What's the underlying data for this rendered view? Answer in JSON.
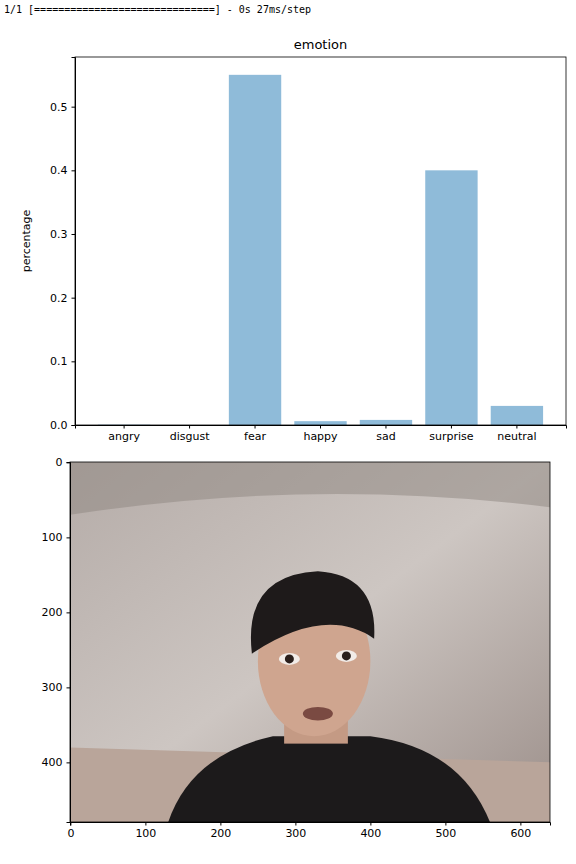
{
  "log_line": "1/1 [==============================] - 0s 27ms/step",
  "chart_data": [
    {
      "type": "bar",
      "title": "emotion",
      "ylabel": "percentage",
      "categories": [
        "angry",
        "disgust",
        "fear",
        "happy",
        "sad",
        "surprise",
        "neutral"
      ],
      "values": [
        0.0005,
        0.0,
        0.55,
        0.006,
        0.008,
        0.4,
        0.03
      ],
      "color": "#8fbbd9",
      "ylim": [
        0,
        0.578
      ],
      "yticks": [
        {
          "value": 0,
          "label": "0.0"
        },
        0.1,
        0.2,
        0.3,
        0.4,
        0.5
      ],
      "grid": false
    },
    {
      "type": "image",
      "xlim": [
        -0.5,
        639.5
      ],
      "ylim": [
        479.5,
        -0.5
      ],
      "xticks": [
        0,
        100,
        200,
        300,
        400,
        500,
        600
      ],
      "yticks": [
        0,
        100,
        200,
        300,
        400
      ],
      "grid": false
    }
  ]
}
